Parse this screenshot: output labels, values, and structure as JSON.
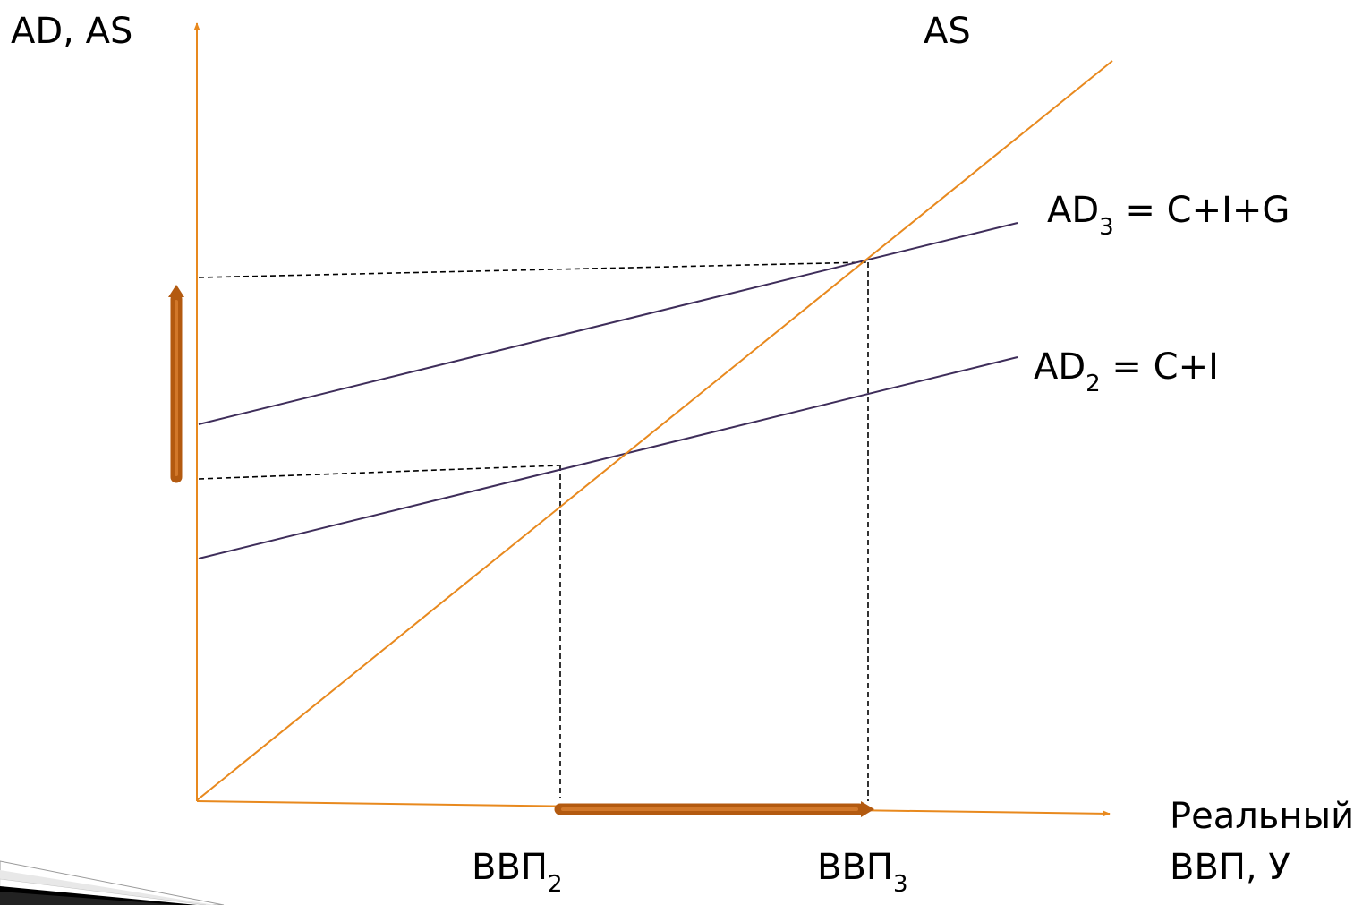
{
  "colors": {
    "axis": "#e8891e",
    "as_line": "#e8891e",
    "ad_line": "#3e2d5a",
    "guide_line": "#000000",
    "shift_arrow": "#b35a10",
    "corner_decoration": "#000000"
  },
  "axes": {
    "y_label": "AD, AS",
    "x_label_line1": "Реальный",
    "x_label_line2": "ВВП, У"
  },
  "curves": {
    "as_label": "AS",
    "ad3": {
      "main": "AD",
      "subscript": "3",
      "formula": " = C+I+G"
    },
    "ad2": {
      "main": "AD",
      "subscript": "2",
      "formula": " = C+I"
    }
  },
  "x_marks": {
    "gdp2": {
      "main": "ВВП",
      "subscript": "2"
    },
    "gdp3": {
      "main": "ВВП",
      "subscript": "3"
    }
  },
  "icons": {
    "vertical_shift": "arrow-up-icon",
    "horizontal_shift": "arrow-right-icon",
    "corner": "slide-corner-decoration"
  }
}
